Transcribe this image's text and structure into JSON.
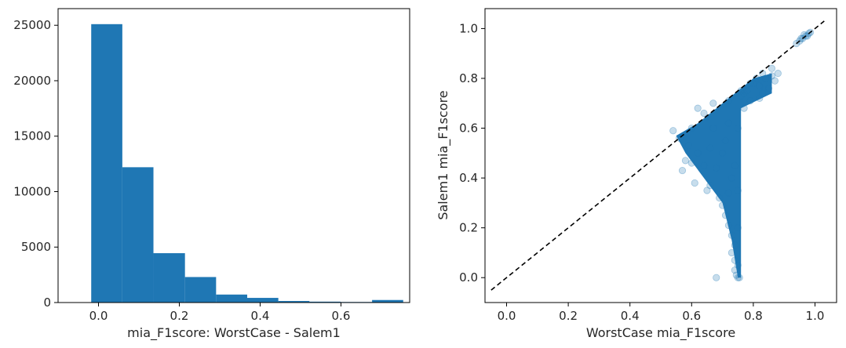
{
  "chart_data": [
    {
      "type": "bar",
      "subtype": "histogram",
      "xlabel": "mia_F1score: WorstCase - Salem1",
      "ylabel": "",
      "xlim": [
        -0.1,
        0.77
      ],
      "ylim": [
        0,
        26500
      ],
      "xticks": [
        0.0,
        0.2,
        0.4,
        0.6
      ],
      "xtick_labels": [
        "0.0",
        "0.2",
        "0.4",
        "0.6"
      ],
      "yticks": [
        0,
        5000,
        10000,
        15000,
        20000,
        25000
      ],
      "ytick_labels": [
        "0",
        "5000",
        "10000",
        "15000",
        "20000",
        "25000"
      ],
      "bin_edges": [
        -0.018,
        0.059,
        0.136,
        0.214,
        0.291,
        0.368,
        0.445,
        0.522,
        0.599,
        0.677,
        0.754
      ],
      "values": [
        25100,
        12200,
        4450,
        2300,
        720,
        420,
        140,
        80,
        50,
        230
      ],
      "color": "#1f77b4",
      "grid": false
    },
    {
      "type": "scatter",
      "xlabel": "WorstCase mia_F1score",
      "ylabel": "Salem1 mia_F1score",
      "xlim": [
        -0.07,
        1.07
      ],
      "ylim": [
        -0.1,
        1.08
      ],
      "xticks": [
        0.0,
        0.2,
        0.4,
        0.6,
        0.8,
        1.0
      ],
      "xtick_labels": [
        "0.0",
        "0.2",
        "0.4",
        "0.6",
        "0.8",
        "1.0"
      ],
      "yticks": [
        0.0,
        0.2,
        0.4,
        0.6,
        0.8,
        1.0
      ],
      "ytick_labels": [
        "0.0",
        "0.2",
        "0.4",
        "0.6",
        "0.8",
        "1.0"
      ],
      "color": "#1f77b4",
      "point_alpha": 0.25,
      "reference_line": {
        "x": [
          -0.05,
          1.03
        ],
        "y": [
          -0.05,
          1.03
        ],
        "style": "dashed",
        "color": "#000000"
      },
      "dense_region": [
        [
          0.55,
          0.57
        ],
        [
          0.62,
          0.62
        ],
        [
          0.72,
          0.72
        ],
        [
          0.8,
          0.8
        ],
        [
          0.86,
          0.82
        ],
        [
          0.86,
          0.74
        ],
        [
          0.76,
          0.68
        ],
        [
          0.76,
          0.0
        ],
        [
          0.75,
          0.0
        ],
        [
          0.73,
          0.15
        ],
        [
          0.7,
          0.3
        ],
        [
          0.64,
          0.4
        ],
        [
          0.58,
          0.5
        ]
      ],
      "points": [
        [
          0.54,
          0.59
        ],
        [
          0.56,
          0.56
        ],
        [
          0.58,
          0.47
        ],
        [
          0.57,
          0.43
        ],
        [
          0.6,
          0.46
        ],
        [
          0.61,
          0.38
        ],
        [
          0.65,
          0.35
        ],
        [
          0.66,
          0.37
        ],
        [
          0.64,
          0.45
        ],
        [
          0.69,
          0.32
        ],
        [
          0.7,
          0.29
        ],
        [
          0.71,
          0.25
        ],
        [
          0.72,
          0.21
        ],
        [
          0.73,
          0.17
        ],
        [
          0.74,
          0.13
        ],
        [
          0.74,
          0.07
        ],
        [
          0.75,
          0.05
        ],
        [
          0.73,
          0.1
        ],
        [
          0.74,
          0.03
        ],
        [
          0.75,
          0.0
        ],
        [
          0.755,
          0.0
        ],
        [
          0.745,
          0.01
        ],
        [
          0.68,
          0.0
        ],
        [
          0.72,
          0.34
        ],
        [
          0.62,
          0.68
        ],
        [
          0.64,
          0.66
        ],
        [
          0.67,
          0.7
        ],
        [
          0.72,
          0.71
        ],
        [
          0.76,
          0.73
        ],
        [
          0.78,
          0.75
        ],
        [
          0.8,
          0.78
        ],
        [
          0.82,
          0.77
        ],
        [
          0.84,
          0.8
        ],
        [
          0.86,
          0.81
        ],
        [
          0.87,
          0.79
        ],
        [
          0.85,
          0.76
        ],
        [
          0.82,
          0.72
        ],
        [
          0.79,
          0.71
        ],
        [
          0.77,
          0.68
        ],
        [
          0.83,
          0.74
        ],
        [
          0.88,
          0.82
        ],
        [
          0.86,
          0.84
        ],
        [
          0.83,
          0.82
        ],
        [
          0.81,
          0.8
        ],
        [
          0.79,
          0.78
        ],
        [
          0.77,
          0.74
        ],
        [
          0.76,
          0.75
        ],
        [
          0.6,
          0.6
        ],
        [
          0.59,
          0.53
        ],
        [
          0.62,
          0.5
        ],
        [
          0.66,
          0.52
        ],
        [
          0.67,
          0.6
        ],
        [
          0.68,
          0.44
        ],
        [
          0.7,
          0.5
        ],
        [
          0.71,
          0.55
        ],
        [
          0.72,
          0.62
        ],
        [
          0.73,
          0.4
        ],
        [
          0.74,
          0.45
        ],
        [
          0.75,
          0.2
        ],
        [
          0.75,
          0.35
        ],
        [
          0.75,
          0.6
        ],
        [
          0.94,
          0.94
        ],
        [
          0.95,
          0.95
        ],
        [
          0.96,
          0.96
        ],
        [
          0.97,
          0.97
        ],
        [
          0.98,
          0.98
        ],
        [
          0.965,
          0.975
        ],
        [
          0.955,
          0.96
        ],
        [
          0.975,
          0.97
        ],
        [
          0.985,
          0.985
        ]
      ],
      "grid": false
    }
  ]
}
